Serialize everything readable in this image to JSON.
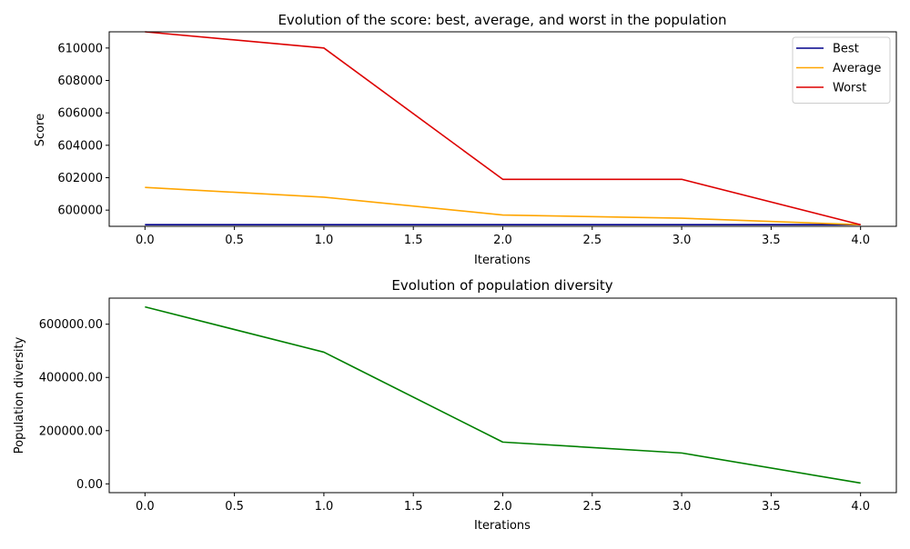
{
  "chart_data": [
    {
      "type": "line",
      "title": "Evolution of the score: best, average, and worst in the population",
      "xlabel": "Iterations",
      "ylabel": "Score",
      "x": [
        0,
        1,
        2,
        3,
        4
      ],
      "xlim": [
        -0.2,
        4.2
      ],
      "ylim": [
        599000,
        611000
      ],
      "xticks": [
        0.0,
        0.5,
        1.0,
        1.5,
        2.0,
        2.5,
        3.0,
        3.5,
        4.0
      ],
      "xtick_labels": [
        "0.0",
        "0.5",
        "1.0",
        "1.5",
        "2.0",
        "2.5",
        "3.0",
        "3.5",
        "4.0"
      ],
      "yticks": [
        600000,
        602000,
        604000,
        606000,
        608000,
        610000
      ],
      "ytick_labels": [
        "600000",
        "602000",
        "604000",
        "606000",
        "608000",
        "610000"
      ],
      "grid": false,
      "legend_position": "top-right",
      "series": [
        {
          "name": "Best",
          "color": "#00008b",
          "values": [
            599100,
            599100,
            599100,
            599100,
            599100
          ]
        },
        {
          "name": "Average",
          "color": "#ffa500",
          "values": [
            601400,
            600800,
            599700,
            599500,
            599100
          ]
        },
        {
          "name": "Worst",
          "color": "#dd0000",
          "values": [
            611000,
            610000,
            601900,
            601900,
            599100
          ]
        }
      ]
    },
    {
      "type": "line",
      "title": "Evolution of population diversity",
      "xlabel": "Iterations",
      "ylabel": "Population diversity",
      "x": [
        0,
        1,
        2,
        3,
        4
      ],
      "xlim": [
        -0.2,
        4.2
      ],
      "ylim": [
        -33000,
        698000
      ],
      "xticks": [
        0.0,
        0.5,
        1.0,
        1.5,
        2.0,
        2.5,
        3.0,
        3.5,
        4.0
      ],
      "xtick_labels": [
        "0.0",
        "0.5",
        "1.0",
        "1.5",
        "2.0",
        "2.5",
        "3.0",
        "3.5",
        "4.0"
      ],
      "yticks": [
        0,
        200000,
        400000,
        600000
      ],
      "ytick_labels": [
        "0.00",
        "200000.00",
        "400000.00",
        "600000.00"
      ],
      "grid": false,
      "series": [
        {
          "color": "#008000",
          "values": [
            665000,
            495000,
            157000,
            116000,
            3000
          ]
        }
      ]
    }
  ]
}
